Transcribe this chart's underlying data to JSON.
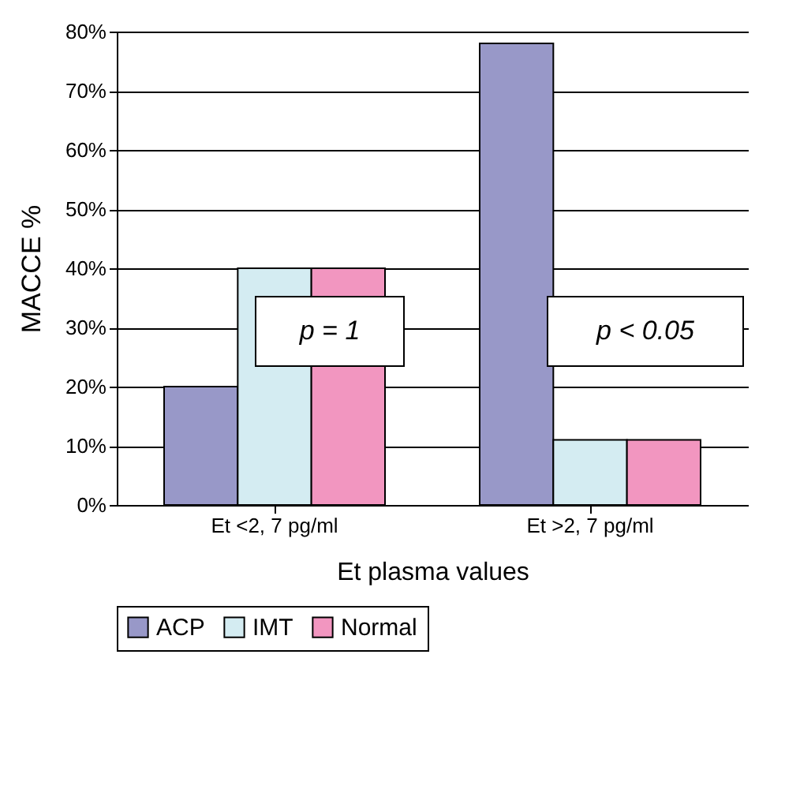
{
  "chart_data": {
    "type": "bar",
    "xlabel": "Et plasma values",
    "ylabel": "MACCE %",
    "categories": [
      "Et <2, 7 pg/ml",
      "Et >2, 7 pg/ml"
    ],
    "series": [
      {
        "name": "ACP",
        "color": "#9898c8",
        "values": [
          20,
          78
        ]
      },
      {
        "name": "IMT",
        "color": "#d4ecf2",
        "values": [
          40,
          11
        ]
      },
      {
        "name": "Normal",
        "color": "#f296c0",
        "values": [
          40,
          11
        ]
      }
    ],
    "ylim": [
      0,
      80
    ],
    "yticks": [
      {
        "value": 0,
        "label": "0%"
      },
      {
        "value": 10,
        "label": "10%"
      },
      {
        "value": 20,
        "label": "20%"
      },
      {
        "value": 30,
        "label": "30%"
      },
      {
        "value": 40,
        "label": "40%"
      },
      {
        "value": 50,
        "label": "50%"
      },
      {
        "value": 60,
        "label": "60%"
      },
      {
        "value": 70,
        "label": "70%"
      },
      {
        "value": 80,
        "label": "80%"
      }
    ],
    "annotations": [
      "p = 1",
      "p < 0.05"
    ],
    "grid": "y",
    "legend": "bottom"
  }
}
